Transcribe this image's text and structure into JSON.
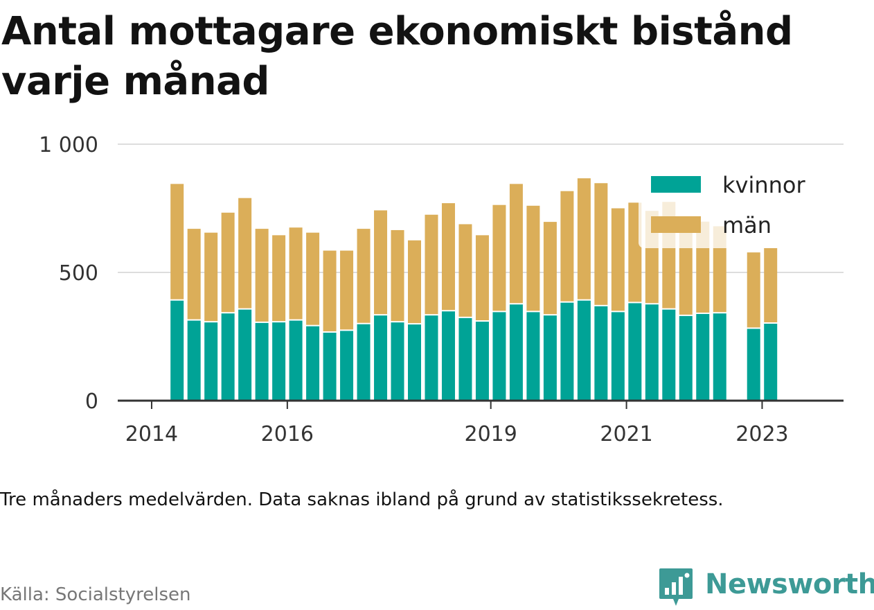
{
  "chart_data": {
    "type": "bar",
    "stacked": true,
    "title": "Antal mottagare ekonomiskt bistånd varje månad",
    "note": "Tre månaders medelvärden. Data saknas ibland på grund av statistikssekretess.",
    "source": "Källa: Socialstyrelsen",
    "ylim": [
      0,
      1000
    ],
    "y_ticks": [
      {
        "value": 0,
        "label": "0"
      },
      {
        "value": 500,
        "label": "500"
      },
      {
        "value": 1000,
        "label": "1 000"
      }
    ],
    "x_ticks": [
      {
        "x": 2014.0,
        "label": "2014"
      },
      {
        "x": 2016.0,
        "label": "2016"
      },
      {
        "x": 2019.0,
        "label": "2019"
      },
      {
        "x": 2021.0,
        "label": "2021"
      },
      {
        "x": 2023.0,
        "label": "2023"
      }
    ],
    "xlim": [
      2013.5,
      2024.2
    ],
    "grid": true,
    "legend_placement": "top-right",
    "x": [
      2014.375,
      2014.625,
      2014.875,
      2015.125,
      2015.375,
      2015.625,
      2015.875,
      2016.125,
      2016.375,
      2016.625,
      2016.875,
      2017.125,
      2017.375,
      2017.625,
      2017.875,
      2018.125,
      2018.375,
      2018.625,
      2018.875,
      2019.125,
      2019.375,
      2019.625,
      2019.875,
      2020.125,
      2020.375,
      2020.625,
      2020.875,
      2021.125,
      2021.375,
      2021.625,
      2021.875,
      2022.125,
      2022.375,
      2022.875,
      2023.125
    ],
    "series": [
      {
        "name": "kvinnor",
        "color": "#00a396",
        "values": [
          390,
          312,
          305,
          340,
          355,
          303,
          305,
          312,
          290,
          265,
          272,
          298,
          332,
          305,
          297,
          332,
          348,
          322,
          308,
          345,
          375,
          345,
          332,
          382,
          390,
          368,
          345,
          380,
          375,
          355,
          330,
          338,
          340,
          280,
          300
        ]
      },
      {
        "name": "män",
        "color": "#dbae59",
        "values": [
          455,
          358,
          350,
          393,
          435,
          367,
          340,
          363,
          365,
          320,
          313,
          372,
          410,
          360,
          328,
          393,
          422,
          366,
          337,
          418,
          470,
          415,
          365,
          435,
          477,
          480,
          405,
          392,
          365,
          420,
          380,
          360,
          340,
          298,
          295
        ]
      }
    ]
  },
  "brand": {
    "name": "Newsworthy",
    "icon": "bar-chart-speech-bubble-icon",
    "color": "#3d9a96"
  }
}
